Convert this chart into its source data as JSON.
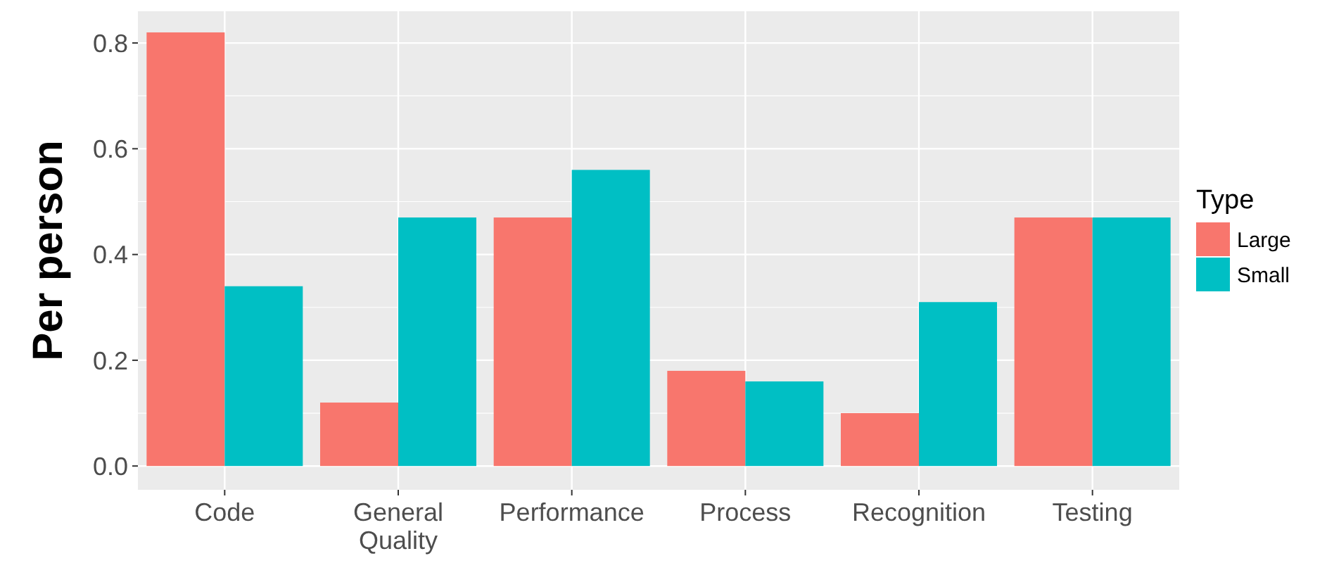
{
  "chart_data": {
    "type": "bar",
    "ylabel": "Per person",
    "legend_title": "Type",
    "categories": [
      "Code",
      "General Quality",
      "Performance",
      "Process",
      "Recognition",
      "Testing"
    ],
    "series": [
      {
        "name": "Large",
        "color": "#f8766d",
        "values": [
          0.82,
          0.12,
          0.47,
          0.18,
          0.1,
          0.47
        ]
      },
      {
        "name": "Small",
        "color": "#00bfc4",
        "values": [
          0.34,
          0.47,
          0.56,
          0.16,
          0.31,
          0.47
        ]
      }
    ],
    "ylim": [
      -0.045,
      0.86
    ],
    "yticks": [
      {
        "value": 0,
        "label": "0.0"
      },
      {
        "value": 0.2,
        "label": "0.2"
      },
      {
        "value": 0.4,
        "label": "0.4"
      },
      {
        "value": 0.6,
        "label": "0.6"
      },
      {
        "value": 0.8,
        "label": "0.8"
      }
    ],
    "grid": true,
    "legend": "right"
  }
}
